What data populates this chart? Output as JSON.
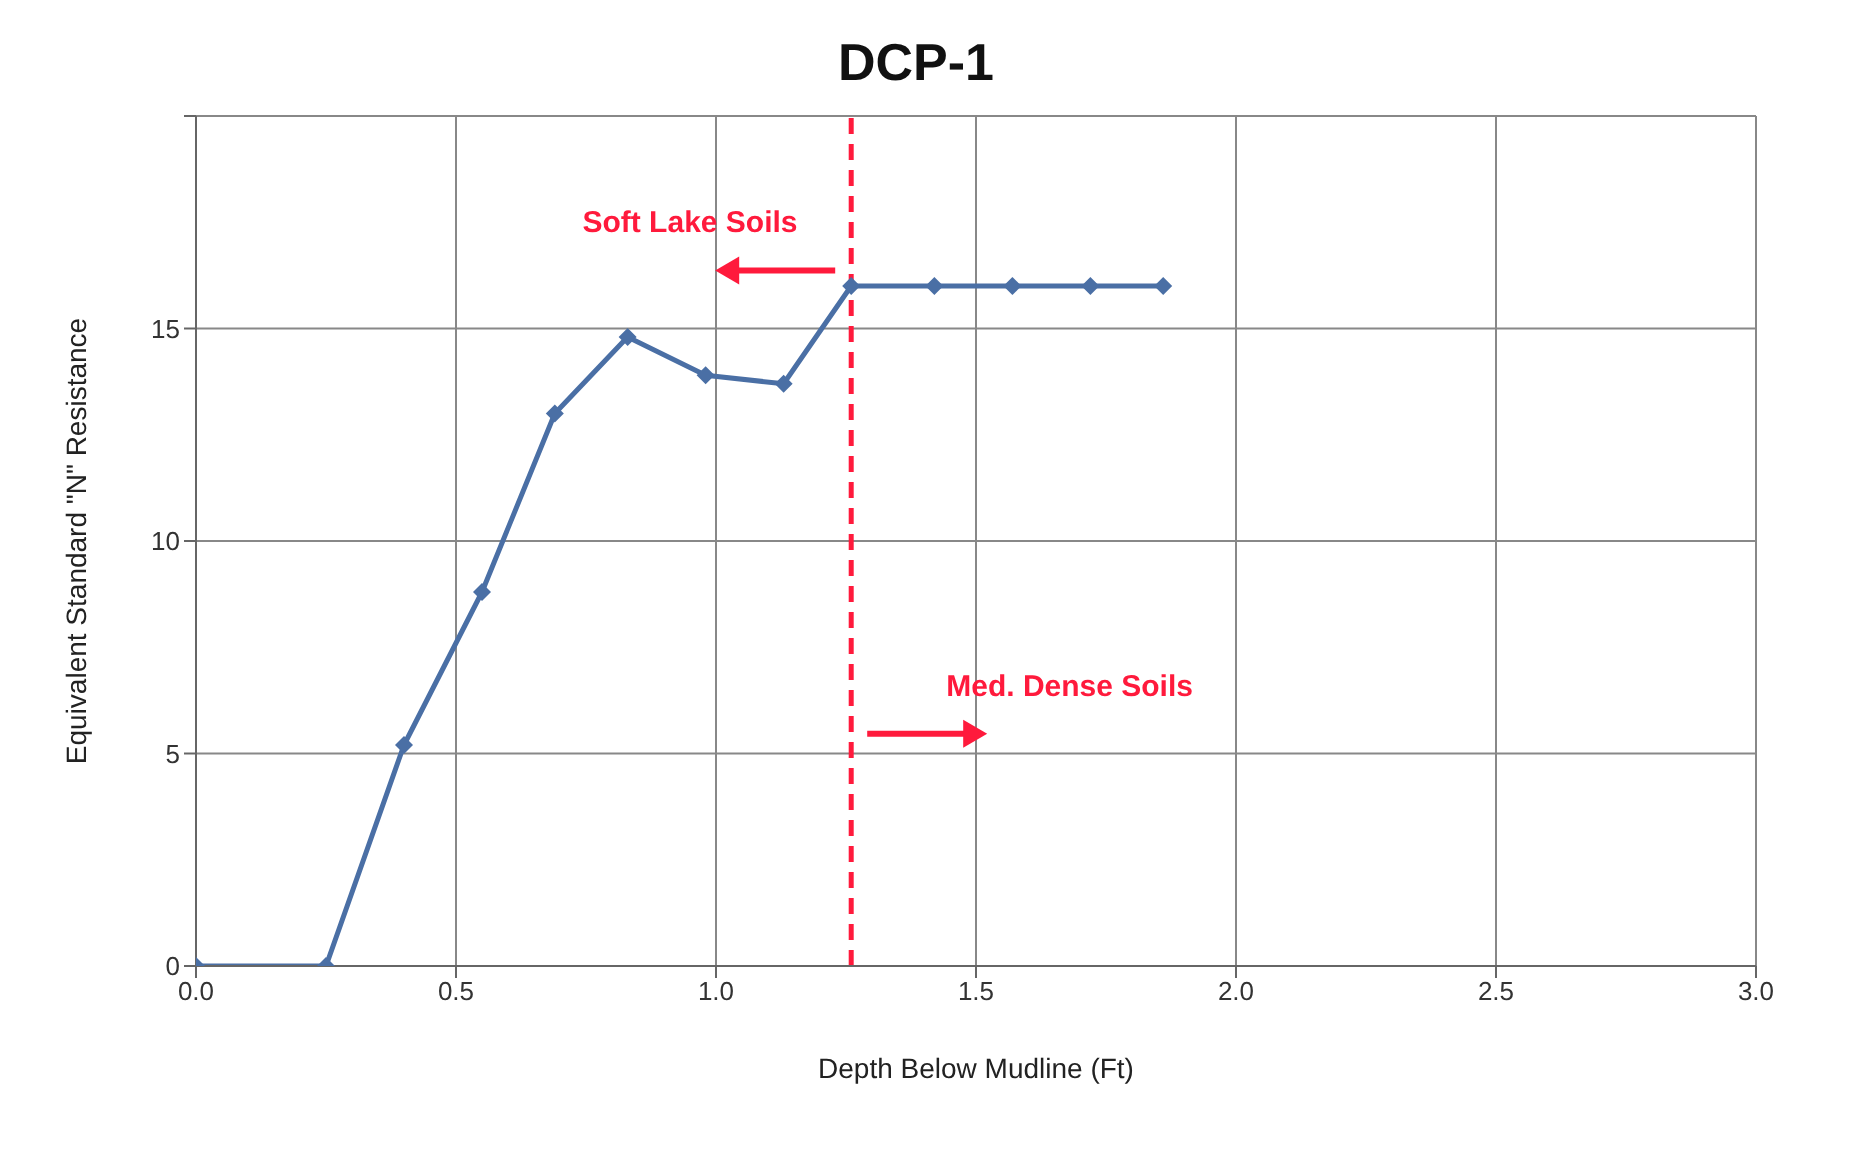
{
  "chart_data": {
    "type": "line",
    "title": "DCP-1",
    "xlabel": "Depth Below  Mudline (Ft)",
    "ylabel": "Equivalent Standard \"N\" Resistance",
    "x": [
      0.0,
      0.25,
      0.4,
      0.55,
      0.69,
      0.83,
      0.98,
      1.13,
      1.26,
      1.42,
      1.57,
      1.72,
      1.86
    ],
    "series": [
      {
        "color": "#4a6fa5",
        "values": [
          0,
          0,
          5.2,
          8.8,
          13.0,
          14.8,
          13.9,
          13.7,
          16.0,
          16.0,
          16.0,
          16.0,
          16.0
        ]
      }
    ],
    "xlim": [
      0,
      3
    ],
    "xticks": [
      {
        "value": 0,
        "label": "0.0"
      },
      0.5,
      {
        "value": 1,
        "label": "1.0"
      },
      1.5,
      {
        "value": 2,
        "label": "2.0"
      },
      2.5,
      {
        "value": 3,
        "label": "3.0"
      }
    ],
    "ylim": [
      0,
      20
    ],
    "yticks": [
      0,
      5,
      10,
      15,
      {
        "value": 20,
        "label": null
      }
    ],
    "grid": true,
    "marker": "diamond",
    "line_style": "solid",
    "ref_lines": [
      {
        "axis": "x",
        "value": 1.26,
        "color": "#ff1a3c",
        "line_style": "dashed"
      }
    ],
    "annotations": [
      "Soft Lake Soils",
      "Med. Dense Soils"
    ]
  }
}
